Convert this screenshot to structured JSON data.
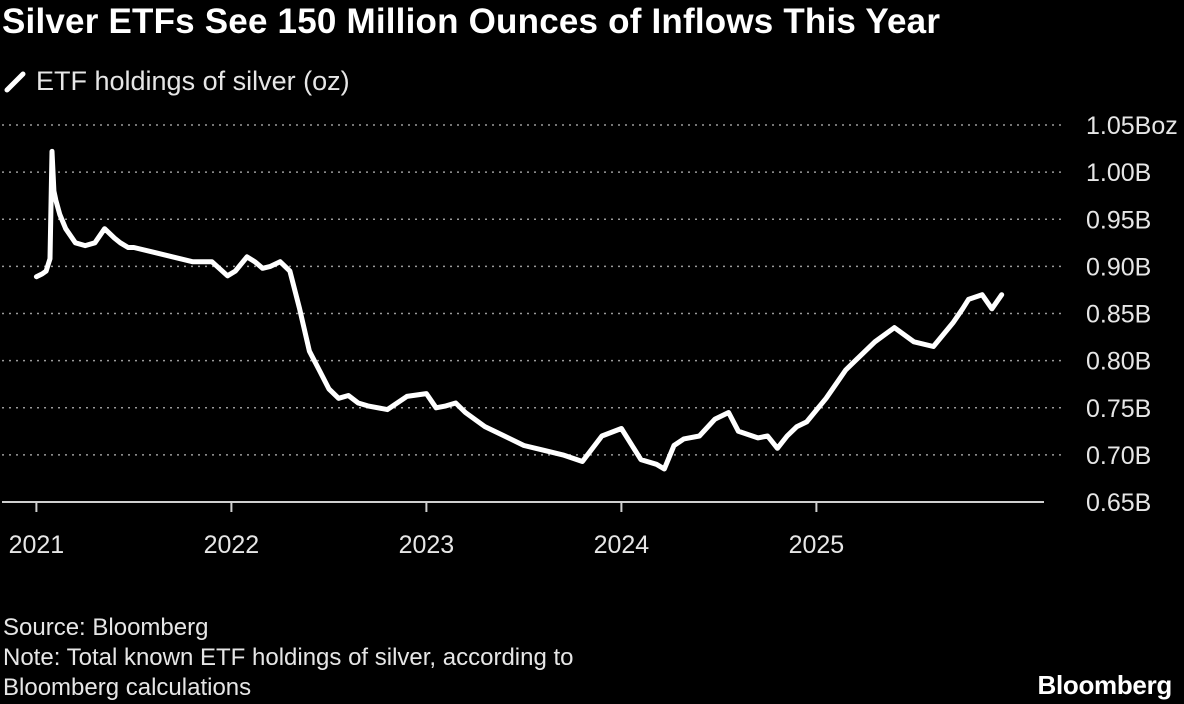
{
  "title": "Silver ETFs See 150 Million Ounces of Inflows This Year",
  "legend": {
    "label": "ETF holdings of silver (oz)",
    "swatch_icon": "line-swatch-icon",
    "color": "#ffffff"
  },
  "footer": {
    "source": "Source: Bloomberg",
    "note_line1": "Note: Total known ETF holdings of silver, according to",
    "note_line2": "Bloomberg calculations",
    "brand": "Bloomberg"
  },
  "chart_data": {
    "type": "line",
    "title": "Silver ETFs See 150 Million Ounces of Inflows This Year",
    "xlabel": "",
    "ylabel": "",
    "ylim": [
      0.65,
      1.05
    ],
    "xlim": [
      2021.0,
      2026.1
    ],
    "y_ticks": [
      0.65,
      0.7,
      0.75,
      0.8,
      0.85,
      0.9,
      0.95,
      1.0,
      1.05
    ],
    "y_tick_labels": [
      "0.65B",
      "0.70B",
      "0.75B",
      "0.80B",
      "0.85B",
      "0.90B",
      "0.95B",
      "1.00B",
      "1.05Boz"
    ],
    "x_ticks": [
      2021,
      2022,
      2023,
      2024,
      2025
    ],
    "x_tick_labels": [
      "2021",
      "2022",
      "2023",
      "2024",
      "2025"
    ],
    "grid": true,
    "legend": "top-left",
    "series": [
      {
        "name": "ETF holdings of silver (oz)",
        "color": "#ffffff",
        "x": [
          2021.0,
          2021.03,
          2021.05,
          2021.07,
          2021.08,
          2021.09,
          2021.1,
          2021.12,
          2021.15,
          2021.2,
          2021.25,
          2021.3,
          2021.35,
          2021.4,
          2021.43,
          2021.47,
          2021.5,
          2021.6,
          2021.7,
          2021.8,
          2021.9,
          2021.98,
          2022.02,
          2022.08,
          2022.12,
          2022.16,
          2022.2,
          2022.25,
          2022.3,
          2022.35,
          2022.4,
          2022.45,
          2022.5,
          2022.55,
          2022.6,
          2022.65,
          2022.7,
          2022.8,
          2022.9,
          2023.0,
          2023.05,
          2023.1,
          2023.15,
          2023.2,
          2023.3,
          2023.4,
          2023.5,
          2023.6,
          2023.7,
          2023.8,
          2023.9,
          2024.0,
          2024.1,
          2024.18,
          2024.22,
          2024.27,
          2024.32,
          2024.4,
          2024.48,
          2024.55,
          2024.6,
          2024.7,
          2024.75,
          2024.8,
          2024.85,
          2024.9,
          2024.95,
          2025.05,
          2025.1,
          2025.15,
          2025.2,
          2025.3,
          2025.4,
          2025.5,
          2025.6,
          2025.7,
          2025.75,
          2025.78,
          2025.85,
          2025.9,
          2025.95
        ],
        "values": [
          0.889,
          0.892,
          0.895,
          0.908,
          1.022,
          0.98,
          0.97,
          0.955,
          0.94,
          0.925,
          0.922,
          0.925,
          0.94,
          0.93,
          0.925,
          0.92,
          0.92,
          0.915,
          0.91,
          0.905,
          0.905,
          0.89,
          0.895,
          0.91,
          0.905,
          0.898,
          0.9,
          0.905,
          0.895,
          0.855,
          0.81,
          0.79,
          0.77,
          0.76,
          0.763,
          0.755,
          0.752,
          0.748,
          0.762,
          0.765,
          0.75,
          0.752,
          0.755,
          0.745,
          0.73,
          0.72,
          0.71,
          0.705,
          0.7,
          0.693,
          0.72,
          0.728,
          0.695,
          0.69,
          0.685,
          0.71,
          0.717,
          0.72,
          0.738,
          0.745,
          0.725,
          0.718,
          0.72,
          0.707,
          0.72,
          0.73,
          0.735,
          0.76,
          0.775,
          0.79,
          0.8,
          0.82,
          0.835,
          0.82,
          0.815,
          0.84,
          0.855,
          0.865,
          0.87,
          0.855,
          0.87
        ]
      }
    ]
  }
}
